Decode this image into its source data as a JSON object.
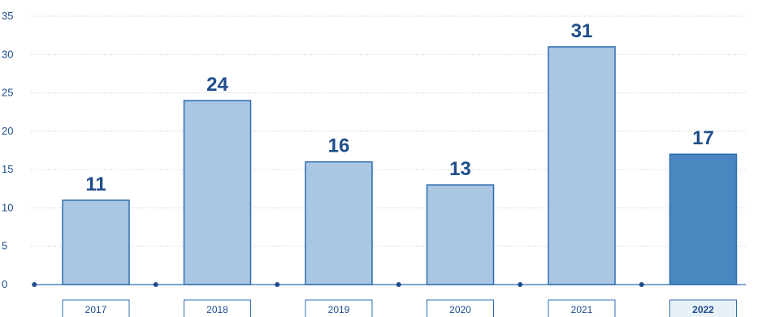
{
  "chart_data": {
    "type": "bar",
    "title": "",
    "xlabel": "",
    "ylabel": "",
    "categories": [
      "2017",
      "2018",
      "2019",
      "2020",
      "2021",
      "2022"
    ],
    "values": [
      11,
      24,
      16,
      13,
      31,
      17
    ],
    "data_labels": [
      "11",
      "24",
      "16",
      "13",
      "31",
      "17"
    ],
    "ylim": [
      0,
      35
    ],
    "yticks": [
      0,
      5,
      10,
      15,
      20,
      25,
      30,
      35
    ],
    "grid": true,
    "highlight_index": 5,
    "colors": {
      "bar": "#a9c6e2",
      "bar_highlight": "#4a86c0",
      "bar_stroke": "#2f6db0",
      "text": "#1f4e8c",
      "grid": "#c9c9c9",
      "axis": "#2f6db0",
      "label_box_highlight": "#e8f0f8"
    }
  }
}
